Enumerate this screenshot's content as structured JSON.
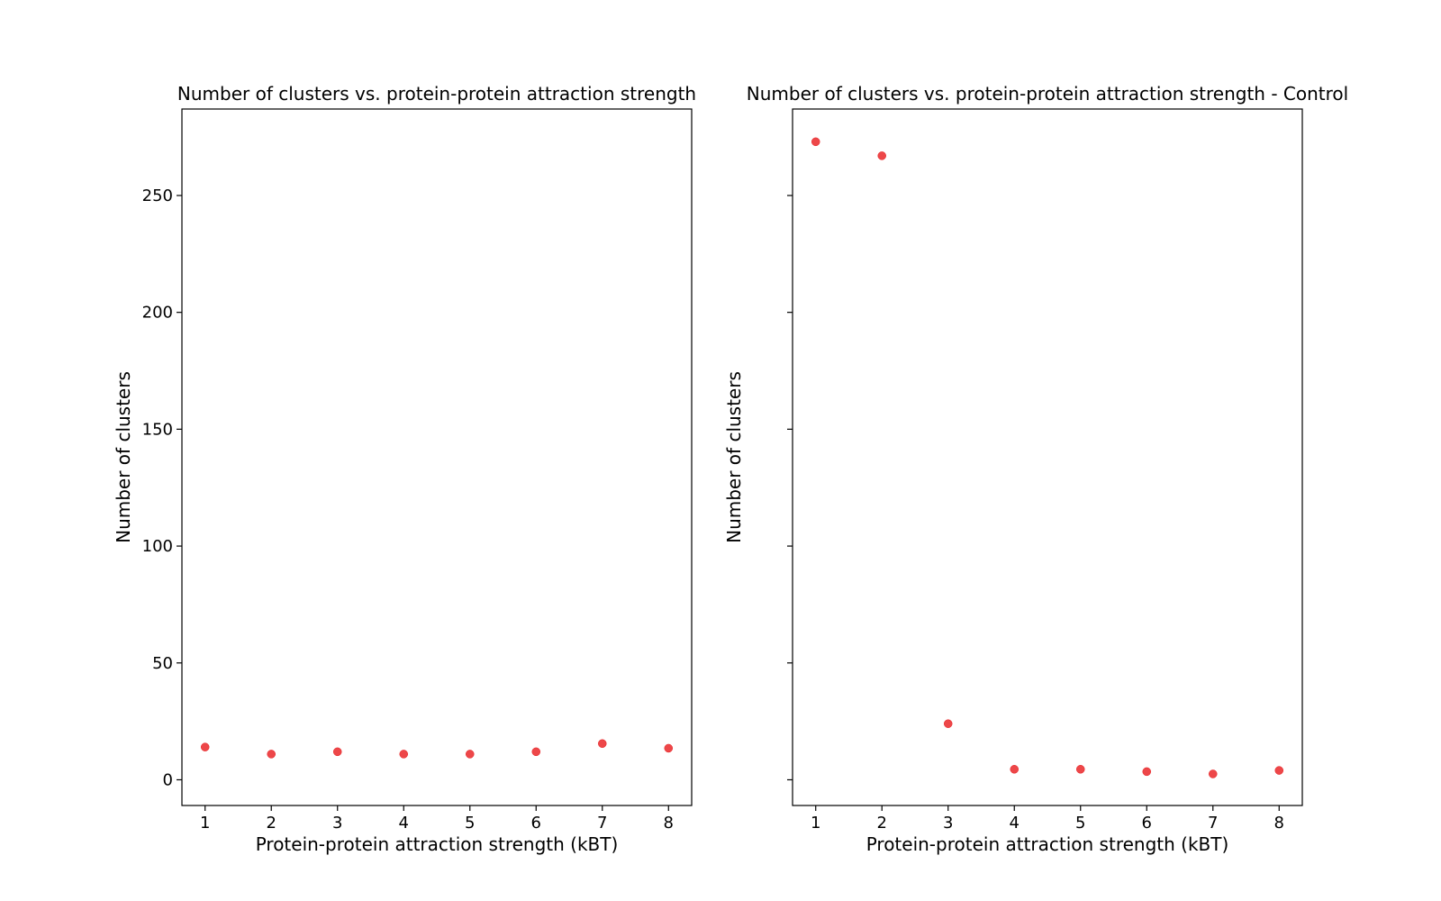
{
  "chart_data": [
    {
      "type": "scatter",
      "title": "Number of clusters vs. protein-protein attraction strength",
      "xlabel": "Protein-protein attraction strength (kBT)",
      "ylabel": "Number of clusters",
      "x": [
        1,
        2,
        3,
        4,
        5,
        6,
        7,
        8
      ],
      "series": [
        {
          "values": [
            14,
            11,
            12,
            11,
            11,
            12,
            15.5,
            13.5
          ],
          "color": "#e8191c"
        }
      ],
      "xlim": [
        0.65,
        8.35
      ],
      "ylim": [
        -11,
        287
      ],
      "xticks": [
        "1",
        "2",
        "3",
        "4",
        "5",
        "6",
        "7",
        "8"
      ],
      "yticks": [
        0,
        50,
        100,
        150,
        200,
        250
      ],
      "ytick_labels": [
        "0",
        "50",
        "100",
        "150",
        "200",
        "250"
      ],
      "show_ytick_labels": true,
      "grid": false
    },
    {
      "type": "scatter",
      "title": "Number of clusters vs. protein-protein attraction strength - Control",
      "xlabel": "Protein-protein attraction strength (kBT)",
      "ylabel": "Number of clusters",
      "x": [
        1,
        2,
        3,
        4,
        5,
        6,
        7,
        8
      ],
      "series": [
        {
          "values": [
            273,
            267,
            24,
            4.5,
            4.5,
            3.5,
            2.5,
            4
          ],
          "color": "#e8191c"
        }
      ],
      "xlim": [
        0.65,
        8.35
      ],
      "ylim": [
        -11,
        287
      ],
      "xticks": [
        "1",
        "2",
        "3",
        "4",
        "5",
        "6",
        "7",
        "8"
      ],
      "yticks": [
        0,
        50,
        100,
        150,
        200,
        250
      ],
      "ytick_labels": [],
      "show_ytick_labels": false,
      "grid": false
    }
  ]
}
